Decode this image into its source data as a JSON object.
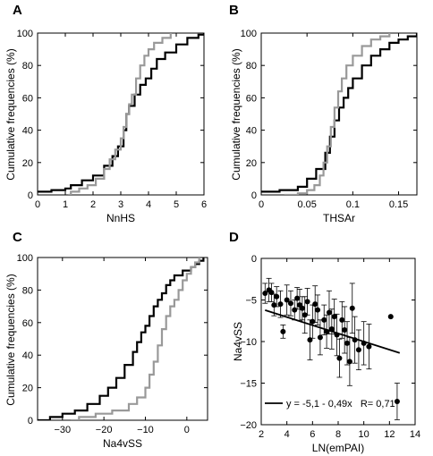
{
  "chart_data": [
    {
      "panel": "A",
      "type": "line",
      "xlabel": "NnHS",
      "ylabel": "Cumulative frequencies (%)",
      "xlim": [
        0,
        6
      ],
      "ylim": [
        0,
        100
      ],
      "xticks": [
        0,
        1,
        2,
        3,
        4,
        5,
        6
      ],
      "yticks": [
        0,
        20,
        40,
        60,
        80,
        100
      ],
      "series": [
        {
          "color": "#000000",
          "points": [
            [
              0,
              2
            ],
            [
              0.5,
              3
            ],
            [
              1.0,
              4
            ],
            [
              1.2,
              6
            ],
            [
              1.6,
              9
            ],
            [
              2.0,
              12
            ],
            [
              2.4,
              18
            ],
            [
              2.7,
              24
            ],
            [
              2.9,
              30
            ],
            [
              3.1,
              40
            ],
            [
              3.2,
              50
            ],
            [
              3.3,
              55
            ],
            [
              3.5,
              62
            ],
            [
              3.7,
              68
            ],
            [
              3.9,
              72
            ],
            [
              4.1,
              78
            ],
            [
              4.3,
              84
            ],
            [
              4.6,
              88
            ],
            [
              5.0,
              93
            ],
            [
              5.4,
              97
            ],
            [
              5.8,
              99
            ],
            [
              6.0,
              100
            ]
          ]
        },
        {
          "color": "#999999",
          "points": [
            [
              1.1,
              0
            ],
            [
              1.2,
              2
            ],
            [
              1.5,
              4
            ],
            [
              1.8,
              6
            ],
            [
              2.1,
              10
            ],
            [
              2.4,
              16
            ],
            [
              2.6,
              22
            ],
            [
              2.8,
              28
            ],
            [
              3.0,
              35
            ],
            [
              3.1,
              42
            ],
            [
              3.2,
              50
            ],
            [
              3.3,
              56
            ],
            [
              3.4,
              62
            ],
            [
              3.55,
              72
            ],
            [
              3.7,
              80
            ],
            [
              3.85,
              86
            ],
            [
              4.0,
              90
            ],
            [
              4.2,
              94
            ],
            [
              4.5,
              97
            ],
            [
              4.8,
              100
            ]
          ]
        }
      ]
    },
    {
      "panel": "B",
      "type": "line",
      "xlabel": "THSAr",
      "ylabel": "Cumulative frequencies (%)",
      "xlim": [
        0,
        0.17
      ],
      "ylim": [
        0,
        100
      ],
      "xticks": [
        0,
        0.05,
        0.1,
        0.15
      ],
      "yticks": [
        0,
        20,
        40,
        60,
        80,
        100
      ],
      "series": [
        {
          "color": "#000000",
          "points": [
            [
              0,
              2
            ],
            [
              0.02,
              3
            ],
            [
              0.04,
              5
            ],
            [
              0.05,
              10
            ],
            [
              0.06,
              16
            ],
            [
              0.07,
              26
            ],
            [
              0.075,
              36
            ],
            [
              0.08,
              46
            ],
            [
              0.085,
              54
            ],
            [
              0.09,
              60
            ],
            [
              0.095,
              66
            ],
            [
              0.1,
              72
            ],
            [
              0.11,
              80
            ],
            [
              0.12,
              86
            ],
            [
              0.13,
              90
            ],
            [
              0.14,
              94
            ],
            [
              0.15,
              96
            ],
            [
              0.16,
              98
            ],
            [
              0.17,
              100
            ]
          ]
        },
        {
          "color": "#999999",
          "points": [
            [
              0.025,
              0
            ],
            [
              0.04,
              1
            ],
            [
              0.05,
              3
            ],
            [
              0.058,
              6
            ],
            [
              0.064,
              12
            ],
            [
              0.068,
              20
            ],
            [
              0.072,
              30
            ],
            [
              0.076,
              42
            ],
            [
              0.08,
              54
            ],
            [
              0.084,
              64
            ],
            [
              0.088,
              72
            ],
            [
              0.093,
              80
            ],
            [
              0.1,
              86
            ],
            [
              0.11,
              92
            ],
            [
              0.12,
              96
            ],
            [
              0.13,
              98
            ],
            [
              0.14,
              100
            ]
          ]
        }
      ]
    },
    {
      "panel": "C",
      "type": "line",
      "xlabel": "Na4vSS",
      "ylabel": "Cumulative frequencies (%)",
      "xlim": [
        -36,
        5
      ],
      "ylim": [
        0,
        100
      ],
      "xticks": [
        -30,
        -20,
        -10,
        0
      ],
      "yticks": [
        0,
        20,
        40,
        60,
        80,
        100
      ],
      "series": [
        {
          "color": "#000000",
          "points": [
            [
              -36,
              0
            ],
            [
              -33,
              2
            ],
            [
              -30,
              4
            ],
            [
              -27,
              6
            ],
            [
              -24,
              10
            ],
            [
              -21,
              15
            ],
            [
              -19,
              20
            ],
            [
              -17,
              26
            ],
            [
              -15,
              34
            ],
            [
              -13,
              42
            ],
            [
              -12,
              48
            ],
            [
              -11,
              54
            ],
            [
              -10,
              58
            ],
            [
              -9,
              64
            ],
            [
              -8,
              70
            ],
            [
              -7,
              74
            ],
            [
              -6,
              78
            ],
            [
              -5,
              83
            ],
            [
              -4,
              86
            ],
            [
              -3,
              89
            ],
            [
              -1,
              92
            ],
            [
              1,
              94
            ],
            [
              2,
              96
            ],
            [
              3,
              98
            ],
            [
              4,
              100
            ]
          ]
        },
        {
          "color": "#999999",
          "points": [
            [
              -28,
              0
            ],
            [
              -26,
              2
            ],
            [
              -22,
              4
            ],
            [
              -18,
              6
            ],
            [
              -14,
              10
            ],
            [
              -12,
              14
            ],
            [
              -10,
              20
            ],
            [
              -9,
              28
            ],
            [
              -8,
              36
            ],
            [
              -7,
              46
            ],
            [
              -6,
              56
            ],
            [
              -5,
              64
            ],
            [
              -4,
              70
            ],
            [
              -3,
              74
            ],
            [
              -2,
              80
            ],
            [
              -1,
              86
            ],
            [
              0,
              90
            ],
            [
              1,
              94
            ],
            [
              2,
              97
            ],
            [
              3,
              100
            ]
          ]
        }
      ]
    },
    {
      "panel": "D",
      "type": "scatter",
      "xlabel": "LN(emPAI)",
      "ylabel": "Na4vSS",
      "xlim": [
        2,
        14
      ],
      "ylim": [
        -20,
        0
      ],
      "xticks": [
        2,
        4,
        6,
        8,
        10,
        12,
        14
      ],
      "yticks": [
        -20,
        -15,
        -10,
        -5,
        0
      ],
      "points": [
        {
          "x": 2.3,
          "y": -4.2,
          "err": 1.2
        },
        {
          "x": 2.6,
          "y": -3.8,
          "err": 1.4
        },
        {
          "x": 2.8,
          "y": -4.1,
          "err": 1.1
        },
        {
          "x": 3.0,
          "y": -5.6,
          "err": 1.3
        },
        {
          "x": 3.2,
          "y": -4.6,
          "err": 1.2
        },
        {
          "x": 3.5,
          "y": -5.5,
          "err": 1.6
        },
        {
          "x": 3.7,
          "y": -8.8,
          "err": 0.8
        },
        {
          "x": 4.0,
          "y": -5.0,
          "err": 1.8
        },
        {
          "x": 4.3,
          "y": -5.4,
          "err": 1.5
        },
        {
          "x": 4.6,
          "y": -6.2,
          "err": 1.2
        },
        {
          "x": 4.8,
          "y": -4.8,
          "err": 1.3
        },
        {
          "x": 5.0,
          "y": -5.6,
          "err": 1.9
        },
        {
          "x": 5.2,
          "y": -6.0,
          "err": 1.4
        },
        {
          "x": 5.4,
          "y": -6.8,
          "err": 2.2
        },
        {
          "x": 5.6,
          "y": -5.2,
          "err": 1.6
        },
        {
          "x": 5.8,
          "y": -9.8,
          "err": 2.4
        },
        {
          "x": 6.0,
          "y": -7.6,
          "err": 2.0
        },
        {
          "x": 6.2,
          "y": -5.5,
          "err": 2.2
        },
        {
          "x": 6.4,
          "y": -6.2,
          "err": 1.8
        },
        {
          "x": 6.6,
          "y": -9.5,
          "err": 2.1
        },
        {
          "x": 6.9,
          "y": -7.4,
          "err": 1.8
        },
        {
          "x": 7.1,
          "y": -8.8,
          "err": 2.0
        },
        {
          "x": 7.3,
          "y": -6.5,
          "err": 2.6
        },
        {
          "x": 7.5,
          "y": -8.5,
          "err": 2.4
        },
        {
          "x": 7.7,
          "y": -7.0,
          "err": 2.1
        },
        {
          "x": 7.9,
          "y": -9.2,
          "err": 2.5
        },
        {
          "x": 8.1,
          "y": -12.0,
          "err": 2.3
        },
        {
          "x": 8.3,
          "y": -7.4,
          "err": 2.2
        },
        {
          "x": 8.5,
          "y": -8.6,
          "err": 2.8
        },
        {
          "x": 8.7,
          "y": -10.2,
          "err": 2.6
        },
        {
          "x": 8.9,
          "y": -12.4,
          "err": 2.9
        },
        {
          "x": 9.1,
          "y": -6.0,
          "err": 3.0
        },
        {
          "x": 9.3,
          "y": -9.8,
          "err": 2.8
        },
        {
          "x": 9.6,
          "y": -11.0,
          "err": 2.4
        },
        {
          "x": 10.0,
          "y": -10.2,
          "err": 2.6
        },
        {
          "x": 10.4,
          "y": -10.6,
          "err": 2.7
        },
        {
          "x": 12.1,
          "y": -7.0,
          "err": 0.0
        },
        {
          "x": 12.6,
          "y": -17.2,
          "err": 2.2
        }
      ],
      "fit": {
        "intercept": -5.1,
        "slope": -0.49,
        "x_range": [
          2.3,
          12.8
        ]
      },
      "legend": "y = -5,1 - 0,49x   R= 0,71",
      "legend_position": "bottom-left"
    }
  ]
}
